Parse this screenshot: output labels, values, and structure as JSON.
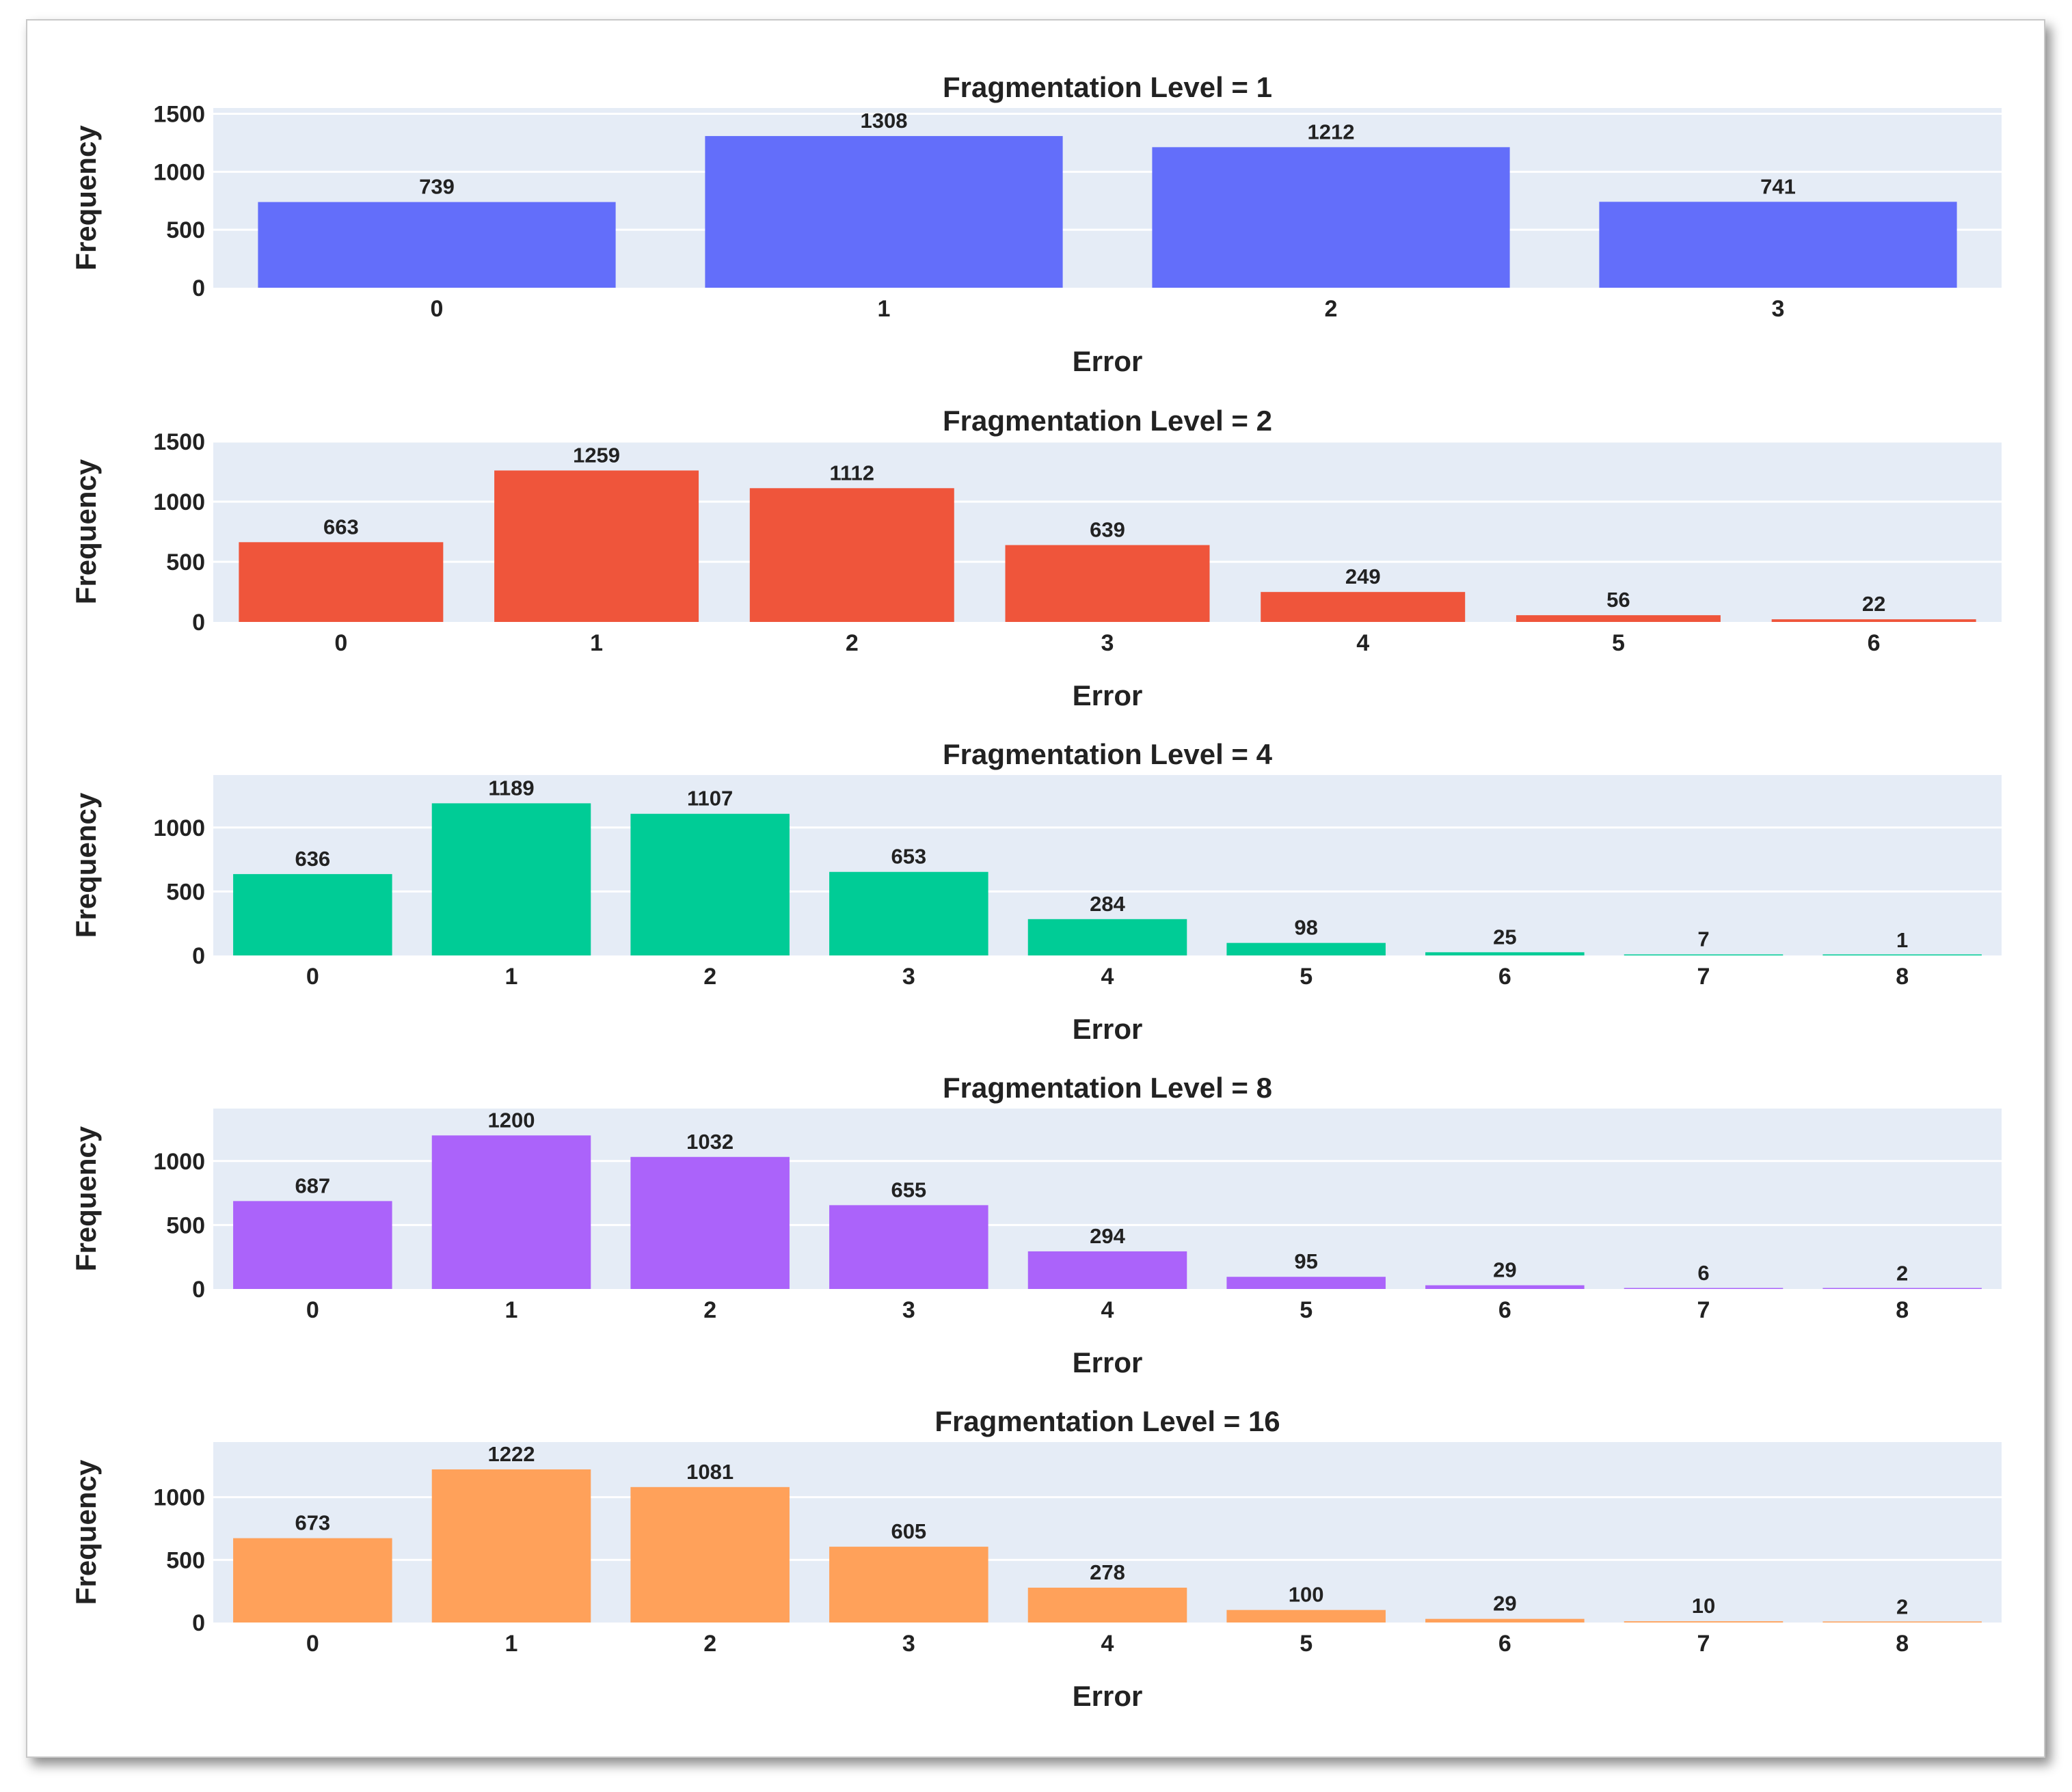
{
  "chart_data": [
    {
      "type": "bar",
      "title": "Fragmentation Level = 1",
      "xlabel": "Error",
      "ylabel": "Frequency",
      "categories": [
        "0",
        "1",
        "2",
        "3"
      ],
      "values": [
        739,
        1308,
        1212,
        741
      ],
      "yticks": [
        0,
        500,
        1000,
        1500
      ],
      "ylim": [
        0,
        1550
      ],
      "color": "#636efa",
      "grid": true
    },
    {
      "type": "bar",
      "title": "Fragmentation Level = 2",
      "xlabel": "Error",
      "ylabel": "Frequency",
      "categories": [
        "0",
        "1",
        "2",
        "3",
        "4",
        "5",
        "6"
      ],
      "values": [
        663,
        1259,
        1112,
        639,
        249,
        56,
        22
      ],
      "yticks": [
        0,
        500,
        1000,
        1500
      ],
      "ylim": [
        0,
        1500
      ],
      "color": "#ef553b",
      "grid": true
    },
    {
      "type": "bar",
      "title": "Fragmentation Level = 4",
      "xlabel": "Error",
      "ylabel": "Frequency",
      "categories": [
        "0",
        "1",
        "2",
        "3",
        "4",
        "5",
        "6",
        "7",
        "8"
      ],
      "values": [
        636,
        1189,
        1107,
        653,
        284,
        98,
        25,
        7,
        1
      ],
      "yticks": [
        0,
        500,
        1000
      ],
      "ylim": [
        0,
        1410
      ],
      "color": "#00cc96",
      "grid": true
    },
    {
      "type": "bar",
      "title": "Fragmentation Level = 8",
      "xlabel": "Error",
      "ylabel": "Frequency",
      "categories": [
        "0",
        "1",
        "2",
        "3",
        "4",
        "5",
        "6",
        "7",
        "8"
      ],
      "values": [
        687,
        1200,
        1032,
        655,
        294,
        95,
        29,
        6,
        2
      ],
      "yticks": [
        0,
        500,
        1000
      ],
      "ylim": [
        0,
        1410
      ],
      "color": "#ab63fa",
      "grid": true
    },
    {
      "type": "bar",
      "title": "Fragmentation Level = 16",
      "xlabel": "Error",
      "ylabel": "Frequency",
      "categories": [
        "0",
        "1",
        "2",
        "3",
        "4",
        "5",
        "6",
        "7",
        "8"
      ],
      "values": [
        673,
        1222,
        1081,
        605,
        278,
        100,
        29,
        10,
        2
      ],
      "yticks": [
        0,
        500,
        1000
      ],
      "ylim": [
        0,
        1440
      ],
      "color": "#ffa15a",
      "grid": true
    }
  ]
}
